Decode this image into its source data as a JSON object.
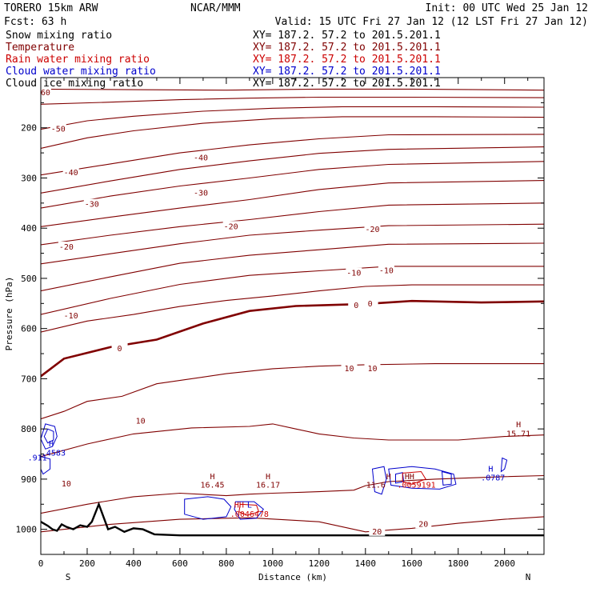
{
  "header": {
    "model": "TORERO  15km ARW",
    "center": "NCAR/MMM",
    "init": "Init: 00 UTC Wed 25 Jan 12",
    "fcst": "Fcst:   63 h",
    "valid": "Valid: 15 UTC Fri 27 Jan 12 (12 LST Fri 27 Jan 12)"
  },
  "fields": [
    {
      "name": "Snow mixing ratio",
      "xy": "XY= 187.2. 57.2 to 201.5.201.1",
      "color": "#000000"
    },
    {
      "name": "Temperature",
      "xy": "XY= 187.2. 57.2 to 201.5.201.1",
      "color": "#800000"
    },
    {
      "name": "Rain water mixing ratio",
      "xy": "XY= 187.2. 57.2 to 201.5.201.1",
      "color": "#cc0000"
    },
    {
      "name": "Cloud water mixing ratio",
      "xy": "XY= 187.2. 57.2 to 201.5.201.1",
      "color": "#0000cc"
    },
    {
      "name": "Cloud ice mixing ratio",
      "xy": "XY= 187.2. 57.2 to 201.5.201.1",
      "color": "#000000"
    }
  ],
  "chart_data": {
    "type": "line",
    "xlabel": "Distance (km)",
    "ylabel": "Pressure (hPa)",
    "xlim": [
      0,
      2170
    ],
    "ylim": [
      1050,
      100
    ],
    "x_ticks": [
      0,
      200,
      400,
      600,
      800,
      1000,
      1200,
      1400,
      1600,
      1800,
      2000
    ],
    "y_ticks": [
      200,
      300,
      400,
      500,
      600,
      700,
      800,
      900,
      1000
    ],
    "left_end_label": "S",
    "right_end_label": "N",
    "colors": {
      "temperature": "#800000",
      "terrain": "#000000",
      "cloud": "#0000cc",
      "rain": "#cc0000"
    },
    "temperature_contours": [
      {
        "level": -60,
        "points": [
          [
            0,
            123
          ],
          [
            400,
            124
          ],
          [
            800,
            125
          ],
          [
            1200,
            123
          ],
          [
            1600,
            123
          ],
          [
            2170,
            125
          ]
        ]
      },
      {
        "level": -50,
        "points": [
          [
            0,
            153
          ],
          [
            300,
            149
          ],
          [
            600,
            144
          ],
          [
            900,
            141
          ],
          [
            1200,
            139
          ],
          [
            1600,
            139
          ],
          [
            2170,
            140
          ]
        ]
      },
      {
        "level": -50,
        "points": [
          [
            0,
            203
          ],
          [
            200,
            186
          ],
          [
            400,
            177
          ],
          [
            700,
            167
          ],
          [
            1000,
            161
          ],
          [
            1300,
            158
          ],
          [
            1700,
            158
          ],
          [
            2170,
            159
          ]
        ]
      },
      {
        "level": -40,
        "points": [
          [
            0,
            241
          ],
          [
            200,
            220
          ],
          [
            400,
            206
          ],
          [
            700,
            191
          ],
          [
            1000,
            182
          ],
          [
            1300,
            178
          ],
          [
            1700,
            178
          ],
          [
            2170,
            179
          ]
        ]
      },
      {
        "level": -40,
        "points": [
          [
            0,
            294
          ],
          [
            300,
            272
          ],
          [
            600,
            250
          ],
          [
            900,
            234
          ],
          [
            1200,
            222
          ],
          [
            1500,
            214
          ],
          [
            2170,
            213
          ]
        ]
      },
      {
        "level": -30,
        "points": [
          [
            0,
            330
          ],
          [
            300,
            306
          ],
          [
            600,
            283
          ],
          [
            900,
            266
          ],
          [
            1200,
            251
          ],
          [
            1500,
            243
          ],
          [
            2170,
            238
          ]
        ]
      },
      {
        "level": -30,
        "points": [
          [
            0,
            360
          ],
          [
            300,
            336
          ],
          [
            600,
            316
          ],
          [
            900,
            300
          ],
          [
            1200,
            283
          ],
          [
            1500,
            273
          ],
          [
            2170,
            267
          ]
        ]
      },
      {
        "level": -20,
        "points": [
          [
            0,
            397
          ],
          [
            300,
            378
          ],
          [
            600,
            360
          ],
          [
            900,
            343
          ],
          [
            1200,
            323
          ],
          [
            1500,
            310
          ],
          [
            2170,
            305
          ]
        ]
      },
      {
        "level": -20,
        "points": [
          [
            0,
            433
          ],
          [
            300,
            414
          ],
          [
            600,
            397
          ],
          [
            900,
            383
          ],
          [
            1200,
            367
          ],
          [
            1500,
            354
          ],
          [
            2170,
            350
          ]
        ]
      },
      {
        "level": -10,
        "points": [
          [
            0,
            471
          ],
          [
            300,
            451
          ],
          [
            600,
            431
          ],
          [
            900,
            414
          ],
          [
            1200,
            404
          ],
          [
            1500,
            395
          ],
          [
            2170,
            392
          ]
        ]
      },
      {
        "level": -10,
        "points": [
          [
            0,
            525
          ],
          [
            300,
            497
          ],
          [
            600,
            470
          ],
          [
            900,
            454
          ],
          [
            1200,
            443
          ],
          [
            1500,
            432
          ],
          [
            2170,
            430
          ]
        ]
      },
      {
        "level": -10,
        "points": [
          [
            0,
            572
          ],
          [
            300,
            540
          ],
          [
            600,
            512
          ],
          [
            900,
            494
          ],
          [
            1200,
            485
          ],
          [
            1500,
            476
          ],
          [
            2170,
            476
          ]
        ]
      },
      {
        "level": 0,
        "bold": true,
        "points": [
          [
            0,
            695
          ],
          [
            100,
            660
          ],
          [
            300,
            637
          ],
          [
            500,
            622
          ],
          [
            700,
            590
          ],
          [
            900,
            565
          ],
          [
            1100,
            555
          ],
          [
            1400,
            551
          ],
          [
            1600,
            545
          ],
          [
            1900,
            548
          ],
          [
            2170,
            546
          ]
        ]
      },
      {
        "level": 0,
        "points": [
          [
            0,
            607
          ],
          [
            200,
            585
          ],
          [
            400,
            572
          ],
          [
            600,
            556
          ],
          [
            800,
            544
          ],
          [
            1000,
            535
          ],
          [
            1200,
            525
          ],
          [
            1400,
            516
          ],
          [
            1600,
            513
          ],
          [
            2170,
            513
          ]
        ]
      },
      {
        "level": 10,
        "points": [
          [
            0,
            780
          ],
          [
            100,
            765
          ],
          [
            200,
            745
          ],
          [
            350,
            735
          ],
          [
            500,
            710
          ],
          [
            800,
            690
          ],
          [
            1000,
            680
          ],
          [
            1200,
            675
          ],
          [
            1400,
            672
          ],
          [
            1700,
            670
          ],
          [
            2170,
            670
          ]
        ]
      },
      {
        "level": 10,
        "points": [
          [
            0,
            855
          ],
          [
            200,
            830
          ],
          [
            400,
            810
          ],
          [
            650,
            798
          ],
          [
            900,
            795
          ],
          [
            1000,
            790
          ],
          [
            1100,
            800
          ],
          [
            1200,
            810
          ],
          [
            1350,
            818
          ],
          [
            1500,
            822
          ],
          [
            1800,
            822
          ],
          [
            2000,
            815
          ],
          [
            2170,
            812
          ]
        ]
      },
      {
        "level": 10,
        "points": [
          [
            0,
            968
          ],
          [
            200,
            950
          ],
          [
            400,
            935
          ],
          [
            600,
            928
          ],
          [
            800,
            933
          ],
          [
            900,
            930
          ],
          [
            1000,
            928
          ],
          [
            1200,
            925
          ],
          [
            1350,
            922
          ],
          [
            1400,
            913
          ],
          [
            1500,
            905
          ],
          [
            1700,
            900
          ],
          [
            2000,
            895
          ],
          [
            2170,
            893
          ]
        ]
      },
      {
        "level": 20,
        "points": [
          [
            0,
            1005
          ],
          [
            300,
            990
          ],
          [
            600,
            980
          ],
          [
            900,
            977
          ],
          [
            1200,
            985
          ],
          [
            1400,
            1005
          ],
          [
            1600,
            998
          ],
          [
            1800,
            988
          ],
          [
            2000,
            980
          ],
          [
            2170,
            975
          ]
        ]
      }
    ],
    "contour_labels": [
      {
        "text": "-60",
        "x": 10,
        "y": 130
      },
      {
        "text": "-50",
        "x": 75,
        "y": 203
      },
      {
        "text": "-40",
        "x": 690,
        "y": 260
      },
      {
        "text": "-40",
        "x": 130,
        "y": 290
      },
      {
        "text": "-30",
        "x": 690,
        "y": 330
      },
      {
        "text": "-30",
        "x": 220,
        "y": 353
      },
      {
        "text": "-20",
        "x": 1430,
        "y": 403
      },
      {
        "text": "-20",
        "x": 820,
        "y": 397
      },
      {
        "text": "-20",
        "x": 110,
        "y": 438
      },
      {
        "text": "-10",
        "x": 1350,
        "y": 490
      },
      {
        "text": "-10",
        "x": 1490,
        "y": 485
      },
      {
        "text": "-10",
        "x": 130,
        "y": 575
      },
      {
        "text": "0",
        "x": 1360,
        "y": 554
      },
      {
        "text": "0",
        "x": 1420,
        "y": 551
      },
      {
        "text": "0",
        "x": 340,
        "y": 640
      },
      {
        "text": "10",
        "x": 1330,
        "y": 680
      },
      {
        "text": "10",
        "x": 1430,
        "y": 680
      },
      {
        "text": "10",
        "x": 430,
        "y": 785
      },
      {
        "text": "10",
        "x": 110,
        "y": 910
      },
      {
        "text": "20",
        "x": 1450,
        "y": 1005
      },
      {
        "text": "20",
        "x": 1650,
        "y": 990
      }
    ],
    "extrema": [
      {
        "text": "H",
        "x": 740,
        "y": 895,
        "color": "#800000"
      },
      {
        "text": "16.45",
        "x": 740,
        "y": 912,
        "color": "#800000"
      },
      {
        "text": "H",
        "x": 980,
        "y": 895,
        "color": "#800000"
      },
      {
        "text": "16.17",
        "x": 980,
        "y": 912,
        "color": "#800000"
      },
      {
        "text": "H",
        "x": 2060,
        "y": 792,
        "color": "#800000"
      },
      {
        "text": "15.71",
        "x": 2060,
        "y": 810,
        "color": "#800000"
      },
      {
        "text": "H",
        "x": 1500,
        "y": 895,
        "color": "#800000"
      },
      {
        "text": "11.6",
        "x": 1445,
        "y": 912,
        "color": "#800000"
      },
      {
        "text": "HH",
        "x": 1590,
        "y": 895,
        "color": "#800000"
      },
      {
        "text": "HH",
        "x": 855,
        "y": 952,
        "color": "#cc0000"
      },
      {
        "text": "L",
        "x": 900,
        "y": 952,
        "color": "#0000cc"
      },
      {
        "text": ".0046478",
        "x": 900,
        "y": 970,
        "color": "#cc0000"
      },
      {
        "text": ".0059191",
        "x": 1620,
        "y": 912,
        "color": "#cc0000"
      },
      {
        "text": "H",
        "x": 45,
        "y": 830,
        "color": "#0000cc"
      },
      {
        "text": ".4583",
        "x": 55,
        "y": 848,
        "color": "#0000cc"
      },
      {
        "text": ".911",
        "x": -15,
        "y": 858,
        "color": "#0000cc"
      },
      {
        "text": "H",
        "x": 1940,
        "y": 880,
        "color": "#0000cc"
      },
      {
        "text": ".0787",
        "x": 1950,
        "y": 898,
        "color": "#0000cc"
      }
    ],
    "cloud_contours": [
      [
        [
          20,
          790
        ],
        [
          60,
          795
        ],
        [
          70,
          815
        ],
        [
          50,
          835
        ],
        [
          20,
          840
        ],
        [
          0,
          820
        ]
      ],
      [
        [
          30,
          800
        ],
        [
          55,
          805
        ],
        [
          55,
          822
        ],
        [
          30,
          828
        ],
        [
          15,
          815
        ]
      ],
      [
        [
          0,
          855
        ],
        [
          40,
          860
        ],
        [
          40,
          880
        ],
        [
          10,
          890
        ],
        [
          0,
          880
        ]
      ],
      [
        [
          620,
          940
        ],
        [
          720,
          935
        ],
        [
          790,
          940
        ],
        [
          820,
          955
        ],
        [
          800,
          975
        ],
        [
          700,
          980
        ],
        [
          620,
          970
        ]
      ],
      [
        [
          840,
          945
        ],
        [
          920,
          945
        ],
        [
          960,
          960
        ],
        [
          930,
          978
        ],
        [
          860,
          980
        ],
        [
          835,
          960
        ]
      ],
      [
        [
          1430,
          880
        ],
        [
          1480,
          875
        ],
        [
          1490,
          900
        ],
        [
          1470,
          930
        ],
        [
          1440,
          925
        ]
      ],
      [
        [
          1500,
          880
        ],
        [
          1600,
          875
        ],
        [
          1700,
          880
        ],
        [
          1780,
          890
        ],
        [
          1790,
          910
        ],
        [
          1720,
          920
        ],
        [
          1600,
          918
        ],
        [
          1510,
          912
        ]
      ],
      [
        [
          1530,
          890
        ],
        [
          1560,
          887
        ],
        [
          1565,
          905
        ],
        [
          1530,
          908
        ]
      ],
      [
        [
          1730,
          885
        ],
        [
          1770,
          890
        ],
        [
          1770,
          910
        ],
        [
          1735,
          912
        ]
      ],
      [
        [
          1990,
          858
        ],
        [
          2010,
          862
        ],
        [
          2000,
          880
        ],
        [
          1985,
          885
        ]
      ]
    ],
    "rain_contours": [
      [
        [
          860,
          950
        ],
        [
          930,
          952
        ],
        [
          940,
          965
        ],
        [
          890,
          972
        ],
        [
          855,
          965
        ]
      ],
      [
        [
          1560,
          888
        ],
        [
          1640,
          885
        ],
        [
          1660,
          900
        ],
        [
          1600,
          910
        ],
        [
          1560,
          905
        ]
      ]
    ],
    "terrain": [
      [
        0,
        985
      ],
      [
        30,
        993
      ],
      [
        50,
        1000
      ],
      [
        70,
        1003
      ],
      [
        90,
        990
      ],
      [
        110,
        995
      ],
      [
        140,
        1000
      ],
      [
        170,
        992
      ],
      [
        200,
        995
      ],
      [
        220,
        985
      ],
      [
        250,
        950
      ],
      [
        270,
        975
      ],
      [
        290,
        1000
      ],
      [
        320,
        995
      ],
      [
        360,
        1005
      ],
      [
        400,
        998
      ],
      [
        440,
        1000
      ],
      [
        490,
        1010
      ],
      [
        600,
        1012
      ],
      [
        1000,
        1012
      ],
      [
        1500,
        1012
      ],
      [
        2170,
        1012
      ]
    ]
  }
}
